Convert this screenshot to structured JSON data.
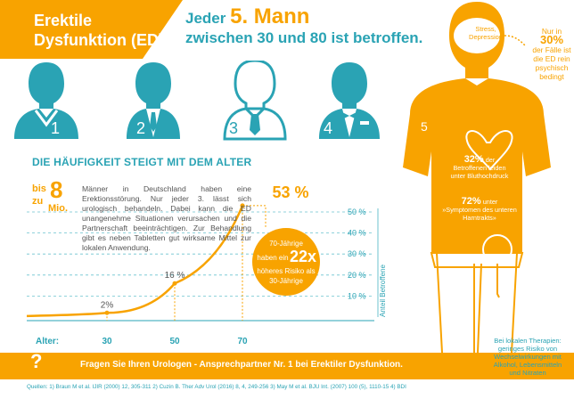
{
  "banner": {
    "line1": "Erektile",
    "line2": "Dysfunktion (ED)"
  },
  "headline": {
    "part1": "Jeder ",
    "number": "5. Mann",
    "line2": "zwischen 30 und 80 ist betroffen."
  },
  "men": [
    {
      "label": "1"
    },
    {
      "label": "2"
    },
    {
      "label": "3"
    },
    {
      "label": "4"
    }
  ],
  "section": {
    "title": "DIE HÄUFIGKEIT STEIGT MIT DEM ALTER"
  },
  "stat": {
    "prefix1": "bis",
    "prefix2": "zu",
    "number": "8",
    "unit": "Mio."
  },
  "paragraph": "Männer in Deutschland haben eine Erektionsstörung. Nur jeder 3. lässt sich urologisch behandeln. Dabei kann die ED unangenehme Situationen verursachen und die Partnerschaft beeinträchtigen. Zur Behandlung gibt es neben Tabletten gut wirksame Mittel zur lokalen Anwendung.",
  "chart_data": {
    "type": "line",
    "x": [
      30,
      50,
      70
    ],
    "values": [
      2,
      16,
      53
    ],
    "point_labels": [
      "2%",
      "16 %",
      "53 %"
    ],
    "xlabel": "Alter:",
    "ylabel": "Anteil Betroffene",
    "yticks": [
      "50 %",
      "40 %",
      "30 %",
      "20 %",
      "10 %"
    ],
    "ylim": [
      0,
      55
    ],
    "bubble": {
      "line1": "70-Jährige",
      "line2": "haben ein",
      "big": "22x",
      "line3": "höheres Risiko als",
      "line4": "30-Jährige"
    }
  },
  "footer": {
    "qmark": "?",
    "text": "Fragen Sie Ihren Urologen - Ansprechpartner Nr. 1 bei Erektiler Dysfunktion."
  },
  "sources": "Quellen: 1) Braun M et al. IJIR (2000) 12, 305-311   2) Cuzin B. Ther Adv Urol (2016) 8, 4, 249-256   3) May M et al. BJU Int. (2007) 100 (5), 1110-15   4) BDI",
  "figure": {
    "number": "5",
    "head_text1": "Stress,",
    "head_text2": "Depression",
    "p32": "32%",
    "p32_word": " der",
    "p32_line2": "Betroffenen leiden",
    "p32_line3": "unter Bluthochdruck",
    "p72": "72%",
    "p72_word": " unter",
    "p72_line2": "»Symptomen des unteren",
    "p72_line3": "Harntrakts»"
  },
  "side_note": {
    "l1": "Nur in ",
    "pct": "30%",
    "l2": "der Fälle ist",
    "l3": "die ED rein",
    "l4": "psychisch",
    "l5": "bedingt"
  },
  "therapy": {
    "l1": "Bei lokalen Therapien:",
    "l2": "geringes Risiko von",
    "l3": "Wechselwirkungen mit",
    "l4": "Alkohol, Lebensmitteln",
    "l5": "und Nitraten"
  },
  "colors": {
    "orange": "#f8a300",
    "teal": "#2aa3b4",
    "tealLight": "#6cc3cf"
  }
}
